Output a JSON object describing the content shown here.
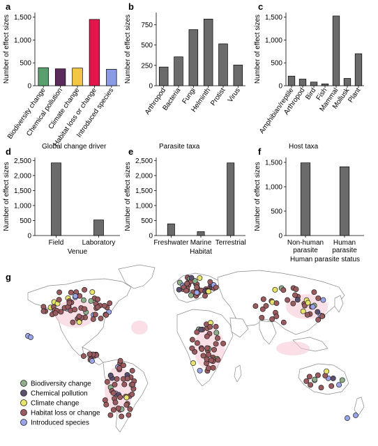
{
  "chart_data": [
    {
      "panel": "a",
      "type": "bar",
      "ylabel": "Number of effect sizes",
      "ylim": [
        0,
        1600
      ],
      "yticks": [
        0,
        500,
        1000,
        1500
      ],
      "ytick_labels": [
        "0",
        "500",
        "1,000",
        "1,500"
      ],
      "categories": [
        "Biodiversity change",
        "Chemical pollution",
        "Climate change",
        "Habitat loss or change",
        "Introduced species"
      ],
      "values": [
        395,
        370,
        385,
        1450,
        360
      ],
      "colors": [
        "#5aa06e",
        "#5a2a5a",
        "#f2c744",
        "#e0174a",
        "#8c9ae6"
      ],
      "caption": "Global change driver"
    },
    {
      "panel": "b",
      "type": "bar",
      "ylabel": "Number of effect sizes",
      "ylim": [
        0,
        900
      ],
      "yticks": [
        0,
        250,
        500,
        750
      ],
      "ytick_labels": [
        "0",
        "250",
        "500",
        "750"
      ],
      "categories": [
        "Arthropod",
        "Bacteria",
        "Fungi",
        "Helminth",
        "Protist",
        "Virus"
      ],
      "values": [
        230,
        355,
        690,
        820,
        515,
        255
      ],
      "caption": "Parasite taxa"
    },
    {
      "panel": "c",
      "type": "bar",
      "ylabel": "Number of effect sizes",
      "ylim": [
        0,
        1600
      ],
      "yticks": [
        0,
        500,
        1000,
        1500
      ],
      "ytick_labels": [
        "0",
        "500",
        "1,000",
        "1,500"
      ],
      "categories": [
        "Amphibian/reptile",
        "Arthropod",
        "Bird",
        "Fish",
        "Mammal",
        "Mollusk",
        "Plant"
      ],
      "values": [
        210,
        145,
        80,
        40,
        1525,
        160,
        700
      ],
      "caption": "Host taxa"
    },
    {
      "panel": "d",
      "type": "bar",
      "ylabel": "Number of effect sizes",
      "xlabel": "Venue",
      "ylim": [
        0,
        2600
      ],
      "yticks": [
        0,
        500,
        1000,
        1500,
        2000,
        2500
      ],
      "ytick_labels": [
        "0",
        "500",
        "1,000",
        "1,500",
        "2,000",
        "2,500"
      ],
      "categories": [
        "Field",
        "Laboratory"
      ],
      "values": [
        2420,
        520
      ]
    },
    {
      "panel": "e",
      "type": "bar",
      "ylabel": "Number of effect sizes",
      "xlabel": "Habitat",
      "ylim": [
        0,
        2600
      ],
      "yticks": [
        0,
        500,
        1000,
        1500,
        2000,
        2500
      ],
      "ytick_labels": [
        "0",
        "500",
        "1,000",
        "1,500",
        "2,000",
        "2,500"
      ],
      "categories": [
        "Freshwater",
        "Marine",
        "Terrestrial"
      ],
      "values": [
        390,
        130,
        2420
      ]
    },
    {
      "panel": "f",
      "type": "bar",
      "ylabel": "Number of effect sizes",
      "xlabel": "Human parasite status",
      "ylim": [
        0,
        1600
      ],
      "yticks": [
        0,
        500,
        1000,
        1500
      ],
      "ytick_labels": [
        "0",
        "500",
        "1,000",
        "1,500"
      ],
      "categories": [
        "Non-human parasite",
        "Human parasite"
      ],
      "category_lines": [
        [
          "Non-human",
          "parasite"
        ],
        [
          "Human",
          "parasite"
        ]
      ],
      "values": [
        1490,
        1410
      ]
    },
    {
      "panel": "g",
      "type": "scatter",
      "description_legend": [
        {
          "name": "Biodiversity change",
          "color": "#8fae8a"
        },
        {
          "name": "Chemical pollution",
          "color": "#5b5070"
        },
        {
          "name": "Climate change",
          "color": "#e8e36a"
        },
        {
          "name": "Habitat loss or change",
          "color": "#9a5a5e"
        },
        {
          "name": "Introduced species",
          "color": "#9aa4e8"
        }
      ],
      "legend_position": "bottom-left"
    }
  ],
  "bar_color": "#6b6b6b"
}
